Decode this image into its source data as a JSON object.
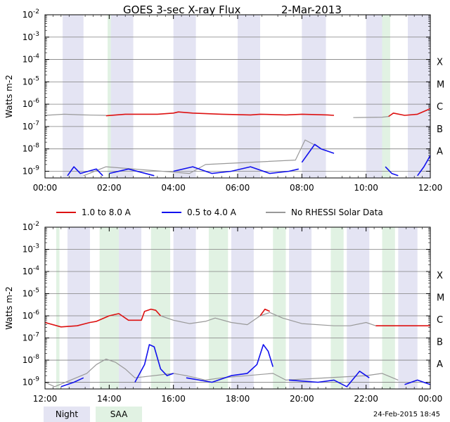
{
  "colors": {
    "night": "#e4e4f3",
    "saa": "#e1f2e3",
    "long": "#dd1111",
    "short": "#1111ee",
    "norhessi": "#999999",
    "grid": "#808080",
    "axis": "#000000",
    "text": "#000000"
  },
  "chart_data": {
    "type": "line",
    "title": "GOES 3-sec X-ray Flux",
    "date": "2-Mar-2013",
    "ylabel": "Watts m-2",
    "yscale": "log",
    "ylim": [
      -9.3,
      -2
    ],
    "ytick_exponents": [
      -9,
      -8,
      -7,
      -6,
      -5,
      -4,
      -3,
      -2
    ],
    "flare_classes": [
      {
        "label": "A",
        "exp": -8
      },
      {
        "label": "B",
        "exp": -7
      },
      {
        "label": "C",
        "exp": -6
      },
      {
        "label": "M",
        "exp": -5
      },
      {
        "label": "X",
        "exp": -4
      }
    ],
    "legend": [
      {
        "key": "long",
        "label": "1.0 to 8.0 A"
      },
      {
        "key": "short",
        "label": "0.5 to 4.0 A"
      },
      {
        "key": "norhessi",
        "label": "No RHESSI Solar Data"
      }
    ],
    "band_legend": [
      {
        "key": "night",
        "label": "Night"
      },
      {
        "key": "saa",
        "label": "SAA"
      }
    ],
    "timestamp": "24-Feb-2015 18:45",
    "panels": [
      {
        "xlim_hours": [
          0,
          12
        ],
        "xticks": [
          {
            "h": 0,
            "label": "00:00"
          },
          {
            "h": 2,
            "label": "02:00"
          },
          {
            "h": 4,
            "label": "04:00"
          },
          {
            "h": 6,
            "label": "06:00"
          },
          {
            "h": 8,
            "label": "08:00"
          },
          {
            "h": 10,
            "label": "10:00"
          },
          {
            "h": 12,
            "label": "12:00"
          }
        ],
        "bands": [
          {
            "type": "night",
            "start": 0.55,
            "end": 1.2
          },
          {
            "type": "saa",
            "start": 1.95,
            "end": 2.05
          },
          {
            "type": "night",
            "start": 2.05,
            "end": 2.75
          },
          {
            "type": "night",
            "start": 4.0,
            "end": 4.7
          },
          {
            "type": "night",
            "start": 6.0,
            "end": 6.7
          },
          {
            "type": "night",
            "start": 8.0,
            "end": 8.75
          },
          {
            "type": "night",
            "start": 10.0,
            "end": 10.7
          },
          {
            "type": "saa",
            "start": 10.5,
            "end": 10.75
          },
          {
            "type": "night",
            "start": 11.3,
            "end": 12.0
          }
        ],
        "long_gray": [
          [
            0,
            -6.5
          ],
          [
            0.6,
            -6.45
          ],
          [
            1.2,
            -6.48
          ],
          [
            1.9,
            -6.5
          ]
        ],
        "long_red": [
          [
            [
              1.9,
              -6.52
            ],
            [
              2.5,
              -6.45
            ],
            [
              3.5,
              -6.45
            ],
            [
              4.0,
              -6.4
            ],
            [
              4.15,
              -6.35
            ],
            [
              4.6,
              -6.4
            ],
            [
              5.5,
              -6.45
            ],
            [
              6.4,
              -6.48
            ],
            [
              6.7,
              -6.45
            ],
            [
              7.5,
              -6.48
            ],
            [
              8.0,
              -6.45
            ],
            [
              8.8,
              -6.48
            ],
            [
              9.0,
              -6.5
            ]
          ],
          [
            [
              10.7,
              -6.55
            ],
            [
              10.85,
              -6.4
            ],
            [
              11.2,
              -6.5
            ],
            [
              11.6,
              -6.45
            ],
            [
              12.0,
              -6.2
            ]
          ]
        ],
        "long_gap_gray": [
          [
            9.6,
            -6.6
          ],
          [
            10.5,
            -6.58
          ],
          [
            10.7,
            -6.55
          ]
        ],
        "short_series": [
          [
            [
              0.7,
              -9.2
            ],
            [
              0.9,
              -8.8
            ],
            [
              1.1,
              -9.1
            ],
            [
              1.6,
              -8.9
            ],
            [
              1.8,
              -9.2
            ]
          ],
          [
            [
              2.0,
              -9.1
            ],
            [
              2.6,
              -8.9
            ],
            [
              3.4,
              -9.2
            ]
          ],
          [
            [
              4.0,
              -9.0
            ],
            [
              4.6,
              -8.8
            ],
            [
              5.2,
              -9.1
            ],
            [
              5.8,
              -9.0
            ],
            [
              6.4,
              -8.8
            ],
            [
              7.0,
              -9.1
            ],
            [
              7.6,
              -9.0
            ],
            [
              7.9,
              -8.9
            ]
          ],
          [
            [
              8.0,
              -8.6
            ],
            [
              8.2,
              -8.2
            ],
            [
              8.4,
              -7.8
            ],
            [
              8.6,
              -8.0
            ],
            [
              8.8,
              -8.1
            ],
            [
              9.0,
              -8.2
            ]
          ],
          [
            [
              10.6,
              -8.8
            ],
            [
              10.8,
              -9.1
            ],
            [
              11.0,
              -9.2
            ]
          ],
          [
            [
              11.6,
              -9.2
            ],
            [
              11.8,
              -8.8
            ],
            [
              12.0,
              -8.3
            ]
          ]
        ],
        "short_gray": [
          [
            1.2,
            -9.2
          ],
          [
            1.9,
            -8.8
          ],
          [
            4.5,
            -9.1
          ],
          [
            5.0,
            -8.7
          ],
          [
            7.8,
            -8.5
          ],
          [
            8.1,
            -7.6
          ],
          [
            8.5,
            -7.9
          ]
        ]
      },
      {
        "xlim_hours": [
          12,
          24
        ],
        "xticks": [
          {
            "h": 12,
            "label": "12:00"
          },
          {
            "h": 14,
            "label": "14:00"
          },
          {
            "h": 16,
            "label": "16:00"
          },
          {
            "h": 18,
            "label": "18:00"
          },
          {
            "h": 20,
            "label": "20:00"
          },
          {
            "h": 22,
            "label": "22:00"
          },
          {
            "h": 24,
            "label": "00:00"
          }
        ],
        "bands": [
          {
            "type": "saa",
            "start": 12.35,
            "end": 12.45
          },
          {
            "type": "night",
            "start": 12.7,
            "end": 13.4
          },
          {
            "type": "saa",
            "start": 13.7,
            "end": 14.3
          },
          {
            "type": "night",
            "start": 14.3,
            "end": 15.0
          },
          {
            "type": "saa",
            "start": 15.3,
            "end": 15.9
          },
          {
            "type": "night",
            "start": 16.0,
            "end": 16.7
          },
          {
            "type": "saa",
            "start": 17.1,
            "end": 17.7
          },
          {
            "type": "night",
            "start": 17.8,
            "end": 18.5
          },
          {
            "type": "saa",
            "start": 19.1,
            "end": 19.5
          },
          {
            "type": "night",
            "start": 19.6,
            "end": 20.3
          },
          {
            "type": "saa",
            "start": 20.9,
            "end": 21.3
          },
          {
            "type": "night",
            "start": 21.4,
            "end": 22.1
          },
          {
            "type": "saa",
            "start": 22.5,
            "end": 22.9
          },
          {
            "type": "night",
            "start": 23.0,
            "end": 23.6
          }
        ],
        "long_red": [
          [
            [
              12.0,
              -6.3
            ],
            [
              12.5,
              -6.5
            ],
            [
              13.0,
              -6.45
            ],
            [
              13.4,
              -6.3
            ],
            [
              13.6,
              -6.25
            ],
            [
              14.0,
              -6.0
            ],
            [
              14.3,
              -5.9
            ],
            [
              14.6,
              -6.2
            ],
            [
              15.0,
              -6.2
            ],
            [
              15.1,
              -5.8
            ],
            [
              15.3,
              -5.7
            ],
            [
              15.45,
              -5.75
            ],
            [
              15.6,
              -6.0
            ]
          ],
          [
            [
              18.7,
              -6.0
            ],
            [
              18.85,
              -5.7
            ],
            [
              19.0,
              -5.8
            ]
          ],
          [
            [
              22.3,
              -6.45
            ],
            [
              23.0,
              -6.45
            ],
            [
              24.0,
              -6.45
            ]
          ]
        ],
        "long_gray": [
          [
            15.6,
            -6.0
          ],
          [
            16.0,
            -6.2
          ],
          [
            16.5,
            -6.35
          ],
          [
            17.0,
            -6.25
          ],
          [
            17.3,
            -6.1
          ],
          [
            17.8,
            -6.3
          ],
          [
            18.3,
            -6.4
          ],
          [
            18.7,
            -6.0
          ],
          [
            19.0,
            -5.85
          ],
          [
            19.4,
            -6.1
          ],
          [
            20.0,
            -6.35
          ],
          [
            21.0,
            -6.45
          ],
          [
            21.5,
            -6.45
          ],
          [
            22.0,
            -6.3
          ],
          [
            22.3,
            -6.45
          ]
        ],
        "short_series": [
          [
            [
              12.5,
              -9.2
            ],
            [
              12.9,
              -9.0
            ],
            [
              13.2,
              -8.8
            ]
          ],
          [
            [
              14.8,
              -9.0
            ],
            [
              15.1,
              -8.2
            ],
            [
              15.25,
              -7.3
            ],
            [
              15.4,
              -7.4
            ],
            [
              15.6,
              -8.4
            ],
            [
              15.8,
              -8.7
            ],
            [
              16.0,
              -8.6
            ]
          ],
          [
            [
              16.4,
              -8.8
            ],
            [
              17.2,
              -9.0
            ],
            [
              17.8,
              -8.7
            ],
            [
              18.3,
              -8.6
            ],
            [
              18.6,
              -8.2
            ],
            [
              18.8,
              -7.3
            ],
            [
              18.95,
              -7.6
            ],
            [
              19.1,
              -8.3
            ]
          ],
          [
            [
              19.6,
              -8.9
            ],
            [
              20.5,
              -9.0
            ],
            [
              21.0,
              -8.9
            ],
            [
              21.4,
              -9.2
            ],
            [
              21.8,
              -8.5
            ],
            [
              22.1,
              -8.8
            ]
          ],
          [
            [
              23.2,
              -9.1
            ],
            [
              23.6,
              -8.9
            ],
            [
              24.0,
              -9.1
            ]
          ]
        ],
        "short_gray": [
          [
            12.0,
            -9.0
          ],
          [
            12.3,
            -9.2
          ],
          [
            13.3,
            -8.6
          ],
          [
            13.6,
            -8.2
          ],
          [
            13.9,
            -7.95
          ],
          [
            14.2,
            -8.1
          ],
          [
            14.5,
            -8.4
          ],
          [
            14.8,
            -8.8
          ],
          [
            16.0,
            -8.6
          ],
          [
            16.4,
            -8.7
          ],
          [
            17.0,
            -8.9
          ],
          [
            17.5,
            -8.8
          ],
          [
            19.1,
            -8.6
          ],
          [
            19.5,
            -8.9
          ],
          [
            22.0,
            -8.7
          ],
          [
            22.5,
            -8.6
          ],
          [
            23.0,
            -8.9
          ]
        ]
      }
    ]
  }
}
